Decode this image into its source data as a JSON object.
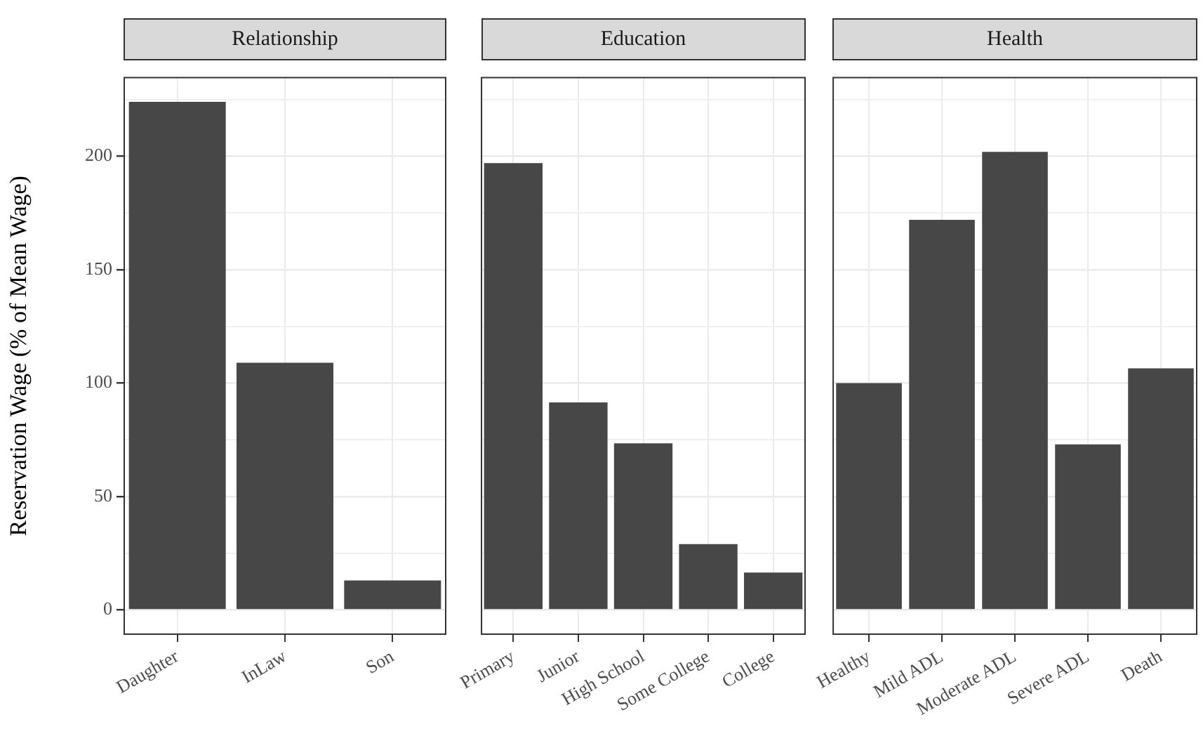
{
  "chart_data": [
    {
      "type": "bar",
      "title": "Relationship",
      "ylabel": "Reservation Wage (% of Mean Wage)",
      "categories": [
        "Daughter",
        "InLaw",
        "Son"
      ],
      "values": [
        224,
        109,
        13
      ],
      "color": "#474747",
      "ylim": [
        -11,
        235
      ],
      "yticks": [
        0,
        {
          "value": 25,
          "label": null
        },
        50,
        {
          "value": 75,
          "label": null
        },
        100,
        {
          "value": 125,
          "label": null
        },
        150,
        {
          "value": 175,
          "label": null
        },
        200,
        {
          "value": 225,
          "label": null
        }
      ],
      "grid": true
    },
    {
      "type": "bar",
      "title": "Education",
      "categories": [
        "Primary",
        "Junior",
        "High School",
        "Some College",
        "College"
      ],
      "values": [
        197,
        91.5,
        73.5,
        29,
        16.5
      ],
      "color": "#474747",
      "ylim": [
        -11,
        235
      ],
      "yticks": [
        0,
        {
          "value": 25,
          "label": null
        },
        50,
        {
          "value": 75,
          "label": null
        },
        100,
        {
          "value": 125,
          "label": null
        },
        150,
        {
          "value": 175,
          "label": null
        },
        200,
        {
          "value": 225,
          "label": null
        }
      ],
      "grid": true,
      "tick_labels": "x"
    },
    {
      "type": "bar",
      "title": "Health",
      "categories": [
        "Healthy",
        "Mild ADL",
        "Moderate ADL",
        "Severe ADL",
        "Death"
      ],
      "values": [
        100,
        172,
        202,
        73,
        106.5
      ],
      "color": "#474747",
      "ylim": [
        -11,
        235
      ],
      "yticks": [
        0,
        {
          "value": 25,
          "label": null
        },
        50,
        {
          "value": 75,
          "label": null
        },
        100,
        {
          "value": 125,
          "label": null
        },
        150,
        {
          "value": 175,
          "label": null
        },
        200,
        {
          "value": 225,
          "label": null
        }
      ],
      "grid": true,
      "tick_labels": "x"
    }
  ]
}
